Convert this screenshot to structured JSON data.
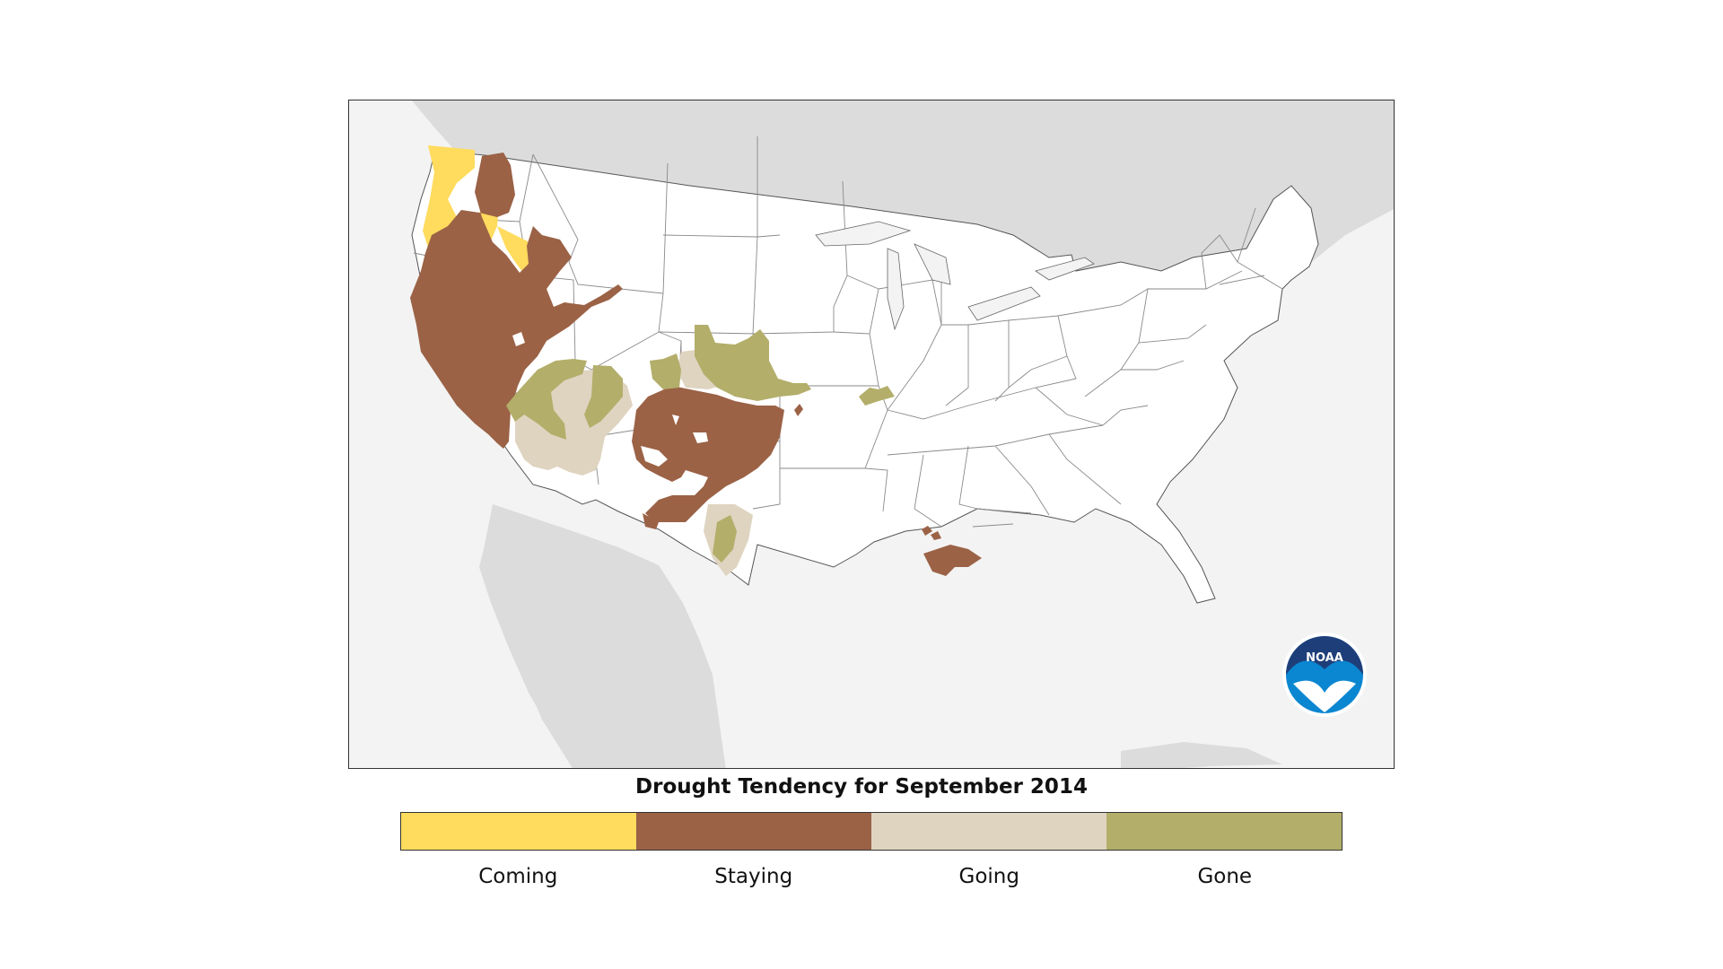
{
  "map": {
    "title": "Drought Tendency for September 2014",
    "logo_text": "NOAA",
    "colors": {
      "background": "#f3f3f3",
      "land_outside": "#dcdcdc",
      "us_land": "#ffffff",
      "state_border": "#7a7a7a",
      "coming": "#ffdb5e",
      "staying": "#9b6246",
      "going": "#dfd4c0",
      "gone": "#b3ae6a"
    },
    "legend": [
      {
        "label": "Coming",
        "color": "#ffdb5e"
      },
      {
        "label": "Staying",
        "color": "#9b6246"
      },
      {
        "label": "Going",
        "color": "#dfd4c0"
      },
      {
        "label": "Gone",
        "color": "#b3ae6a"
      }
    ]
  }
}
